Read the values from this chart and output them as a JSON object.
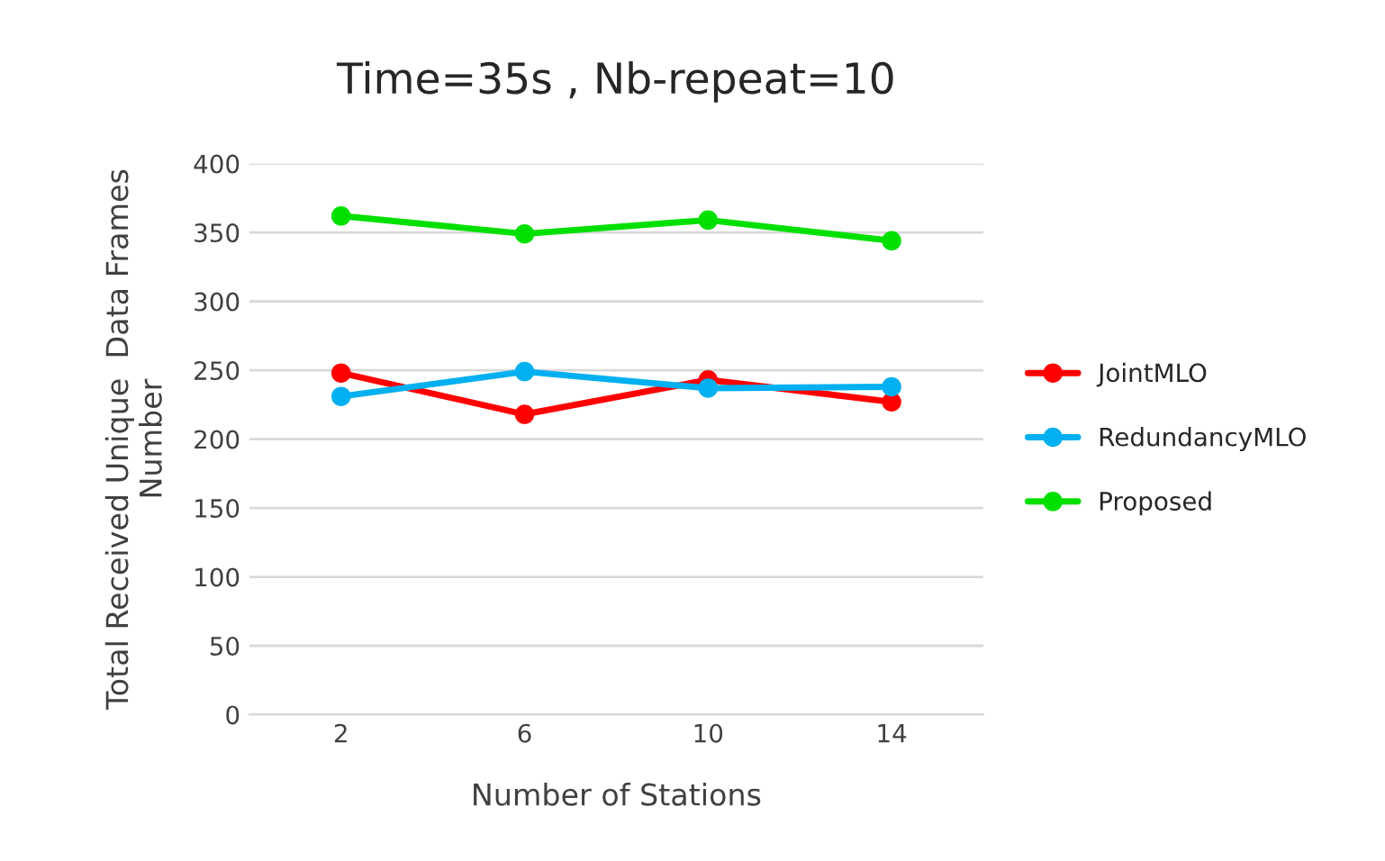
{
  "chart_data": {
    "type": "line",
    "title": "Time=35s , Nb-repeat=10",
    "xlabel": "Number of Stations",
    "ylabel": "Total Received Unique  Data Frames\nNumber",
    "categories": [
      "2",
      "6",
      "10",
      "14"
    ],
    "series": [
      {
        "name": "JointMLO",
        "color": "#ff0000",
        "values": [
          248,
          218,
          243,
          227
        ]
      },
      {
        "name": "RedundancyMLO",
        "color": "#00b0f0",
        "values": [
          231,
          249,
          237,
          238
        ]
      },
      {
        "name": "Proposed",
        "color": "#00e000",
        "values": [
          362,
          349,
          359,
          344
        ]
      }
    ],
    "ylim": [
      0,
      400
    ],
    "yticks": [
      0,
      50,
      100,
      150,
      200,
      250,
      300,
      350,
      400
    ],
    "grid": "y",
    "legend": "right",
    "marker": "circle",
    "line_style": "solid"
  }
}
